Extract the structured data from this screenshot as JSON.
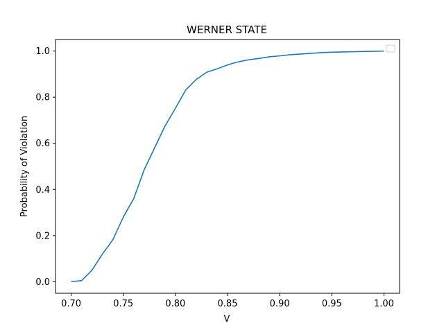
{
  "chart_data": {
    "type": "line",
    "title": "WERNER STATE",
    "xlabel": "V",
    "ylabel": "Probability of Violation",
    "xlim": [
      0.685,
      1.015
    ],
    "ylim": [
      -0.05,
      1.05
    ],
    "xticks": [
      "0.70",
      "0.75",
      "0.80",
      "0.85",
      "0.90",
      "0.95",
      "1.00"
    ],
    "yticks": [
      "0.0",
      "0.2",
      "0.4",
      "0.6",
      "0.8",
      "1.0"
    ],
    "grid": false,
    "legend": "top-right",
    "series": [
      {
        "color": "#1f77b4",
        "x": [
          0.7,
          0.71,
          0.72,
          0.73,
          0.74,
          0.75,
          0.76,
          0.77,
          0.78,
          0.79,
          0.8,
          0.81,
          0.82,
          0.83,
          0.84,
          0.85,
          0.86,
          0.87,
          0.88,
          0.89,
          0.9,
          0.91,
          0.92,
          0.93,
          0.94,
          0.95,
          0.96,
          0.97,
          0.98,
          0.99,
          1.0
        ],
        "y": [
          0.0,
          0.005,
          0.05,
          0.12,
          0.182,
          0.28,
          0.36,
          0.485,
          0.58,
          0.675,
          0.752,
          0.832,
          0.877,
          0.908,
          0.923,
          0.94,
          0.953,
          0.962,
          0.968,
          0.975,
          0.979,
          0.984,
          0.987,
          0.99,
          0.993,
          0.995,
          0.996,
          0.997,
          0.998,
          0.999,
          1.0
        ]
      }
    ]
  }
}
